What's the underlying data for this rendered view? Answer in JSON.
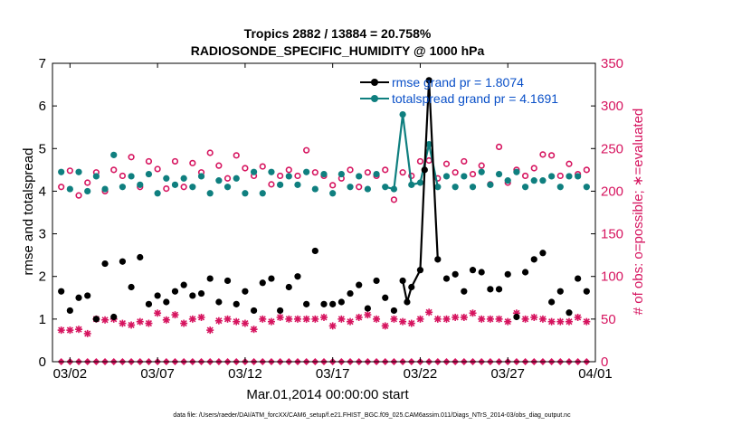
{
  "chart_data": {
    "type": "line",
    "title": "Tropics 2882 / 13884 = 20.758%",
    "subtitle": "RADIOSONDE_SPECIFIC_HUMIDITY @ 1000 hPa",
    "xlabel": "Mar.01,2014 00:00:00 start",
    "ylabel": "rmse and totalspread",
    "ylabel_right": "# of obs: o=possible; ∗=evaluated",
    "footer": "data file: /Users/raeder/DAI/ATM_forcXX/CAM6_setup/f.e21.FHIST_BGC.f09_025.CAM6assim.011/Diags_NTrS_2014-03/obs_diag_output.nc",
    "x_range": [
      1,
      32
    ],
    "ylim": [
      0,
      7
    ],
    "ylim_right": [
      0,
      350
    ],
    "x_ticks": [
      {
        "value": 2,
        "label": "03/02"
      },
      {
        "value": 7,
        "label": "03/07"
      },
      {
        "value": 12,
        "label": "03/12"
      },
      {
        "value": 17,
        "label": "03/17"
      },
      {
        "value": 22,
        "label": "03/22"
      },
      {
        "value": 27,
        "label": "03/27"
      },
      {
        "value": 32,
        "label": "04/01"
      }
    ],
    "y_ticks": [
      "0",
      "1",
      "2",
      "3",
      "4",
      "5",
      "6",
      "7"
    ],
    "y_ticks_right": [
      "0",
      "50",
      "100",
      "150",
      "200",
      "250",
      "300",
      "350"
    ],
    "legend": [
      {
        "label": "rmse grand pr = 1.8074",
        "color": "#000000"
      },
      {
        "label": "totalspread grand pr = 4.1691",
        "color": "#0f7f7f"
      }
    ],
    "colors": {
      "rmse": "#000000",
      "totalspread": "#0f7f7f",
      "obs": "#d6145f"
    },
    "series": [
      {
        "name": "rmse",
        "x": [
          1.5,
          2,
          2.5,
          3,
          3.5,
          4,
          4.5,
          5,
          5.5,
          6,
          6.5,
          7,
          7.5,
          8,
          8.5,
          9,
          9.5,
          10,
          10.5,
          11,
          11.5,
          12,
          12.5,
          13,
          13.5,
          14,
          14.5,
          15,
          15.5,
          16,
          16.5,
          17,
          17.5,
          18,
          18.5,
          19,
          19.5,
          20,
          20.5,
          21,
          21.25,
          21.5,
          22,
          22.25,
          22.5,
          23,
          23.5,
          24,
          24.5,
          25,
          25.5,
          26,
          26.5,
          27,
          27.5,
          28,
          28.5,
          29,
          29.5,
          30,
          30.5,
          31,
          31.5
        ],
        "values": [
          1.65,
          1.2,
          1.5,
          1.55,
          1.0,
          2.3,
          1.05,
          2.35,
          1.75,
          2.45,
          1.35,
          1.55,
          1.4,
          1.65,
          1.8,
          1.55,
          1.6,
          1.95,
          1.4,
          1.9,
          1.35,
          1.65,
          1.2,
          1.85,
          1.95,
          1.2,
          1.75,
          2.0,
          1.35,
          2.6,
          1.35,
          1.35,
          1.4,
          1.6,
          1.8,
          1.25,
          1.9,
          1.5,
          1.2,
          1.9,
          1.4,
          1.75,
          2.15,
          4.5,
          6.6,
          2.4,
          1.95,
          2.05,
          1.65,
          2.15,
          2.1,
          1.7,
          1.7,
          2.05,
          1.05,
          2.1,
          2.4,
          2.55,
          1.4,
          1.65,
          1.15,
          1.95,
          1.65
        ],
        "connected_x_range": [
          21.0,
          23.0
        ]
      },
      {
        "name": "totalspread",
        "x": [
          1.5,
          2,
          2.5,
          3,
          3.5,
          4,
          4.5,
          5,
          5.5,
          6,
          6.5,
          7,
          7.5,
          8,
          8.5,
          9,
          9.5,
          10,
          10.5,
          11,
          11.5,
          12,
          12.5,
          13,
          13.5,
          14,
          14.5,
          15,
          15.5,
          16,
          16.5,
          17,
          17.5,
          18,
          18.5,
          19,
          19.5,
          20,
          20.5,
          21,
          21.5,
          22,
          22.5,
          23,
          23.5,
          24,
          24.5,
          25,
          25.5,
          26,
          26.5,
          27,
          27.5,
          28,
          28.5,
          29,
          29.5,
          30,
          30.5,
          31,
          31.5
        ],
        "values": [
          4.45,
          4.05,
          4.45,
          4.0,
          4.35,
          4.05,
          4.85,
          4.1,
          4.35,
          4.15,
          4.4,
          3.95,
          4.3,
          4.15,
          4.3,
          4.1,
          4.35,
          3.95,
          4.25,
          4.1,
          4.3,
          3.95,
          4.45,
          3.95,
          4.45,
          4.15,
          4.35,
          4.15,
          4.45,
          4.05,
          4.4,
          3.95,
          4.4,
          4.1,
          4.35,
          4.05,
          4.4,
          4.1,
          4.05,
          5.8,
          4.15,
          4.2,
          5.1,
          4.1,
          4.35,
          4.1,
          4.35,
          4.1,
          4.45,
          4.15,
          4.4,
          4.25,
          4.45,
          4.1,
          4.25,
          4.25,
          4.35,
          4.1,
          4.35,
          4.35,
          4.1
        ],
        "connected_x_range": [
          20.0,
          23.0
        ]
      },
      {
        "name": "obs_possible",
        "x": [
          1.5,
          2,
          2.5,
          3,
          3.5,
          4,
          4.5,
          5,
          5.5,
          6,
          6.5,
          7,
          7.5,
          8,
          8.5,
          9,
          9.5,
          10,
          10.5,
          11,
          11.5,
          12,
          12.5,
          13,
          13.5,
          14,
          14.5,
          15,
          15.5,
          16,
          16.5,
          17,
          17.5,
          18,
          18.5,
          19,
          19.5,
          20,
          20.5,
          21,
          21.5,
          22,
          22.5,
          23,
          23.5,
          24,
          24.5,
          25,
          25.5,
          26,
          26.5,
          27,
          27.5,
          28,
          28.5,
          29,
          29.5,
          30,
          30.5,
          31,
          31.5
        ],
        "values": [
          205,
          224,
          195,
          210,
          222,
          200,
          225,
          218,
          240,
          205,
          235,
          226,
          203,
          235,
          205,
          233,
          222,
          245,
          230,
          215,
          242,
          227,
          218,
          229,
          208,
          218,
          225,
          218,
          248,
          222,
          218,
          207,
          215,
          225,
          205,
          222,
          218,
          225,
          190,
          222,
          218,
          235,
          236,
          215,
          232,
          222,
          235,
          220,
          230,
          208,
          252,
          210,
          225,
          218,
          227,
          243,
          242,
          218,
          232,
          220,
          225
        ],
        "axis": "right"
      },
      {
        "name": "obs_evaluated",
        "x": [
          1.5,
          2,
          2.5,
          3,
          3.5,
          4,
          4.5,
          5,
          5.5,
          6,
          6.5,
          7,
          7.5,
          8,
          8.5,
          9,
          9.5,
          10,
          10.5,
          11,
          11.5,
          12,
          12.5,
          13,
          13.5,
          14,
          14.5,
          15,
          15.5,
          16,
          16.5,
          17,
          17.5,
          18,
          18.5,
          19,
          19.5,
          20,
          20.5,
          21,
          21.5,
          22,
          22.5,
          23,
          23.5,
          24,
          24.5,
          25,
          25.5,
          26,
          26.5,
          27,
          27.5,
          28,
          28.5,
          29,
          29.5,
          30,
          30.5,
          31,
          31.5
        ],
        "values": [
          37,
          37,
          38,
          33,
          50,
          49,
          50,
          45,
          43,
          47,
          45,
          57,
          49,
          55,
          45,
          50,
          52,
          37,
          48,
          50,
          47,
          45,
          38,
          50,
          47,
          52,
          50,
          50,
          50,
          50,
          52,
          42,
          50,
          47,
          52,
          55,
          50,
          42,
          50,
          47,
          45,
          50,
          58,
          50,
          50,
          52,
          52,
          57,
          50,
          50,
          50,
          47,
          57,
          50,
          52,
          50,
          47,
          47,
          47,
          52,
          47
        ],
        "axis": "right"
      },
      {
        "name": "zero_markers",
        "x": [
          1.5,
          2,
          2.5,
          3,
          3.5,
          4,
          4.5,
          5,
          5.5,
          6,
          6.5,
          7,
          7.5,
          8,
          8.5,
          9,
          9.5,
          10,
          10.5,
          11,
          11.5,
          12,
          12.5,
          13,
          13.5,
          14,
          14.5,
          15,
          15.5,
          16,
          16.5,
          17,
          17.5,
          18,
          18.5,
          19,
          19.5,
          20,
          20.5,
          21,
          21.5,
          22,
          22.5,
          23,
          23.5,
          24,
          24.5,
          25,
          25.5,
          26,
          26.5,
          27,
          27.5,
          28,
          28.5,
          29,
          29.5,
          30,
          30.5,
          31,
          31.5
        ],
        "values": [
          0,
          0,
          0,
          0,
          0,
          0,
          0,
          0,
          0,
          0,
          0,
          0,
          0,
          0,
          0,
          0,
          0,
          0,
          0,
          0,
          0,
          0,
          0,
          0,
          0,
          0,
          0,
          0,
          0,
          0,
          0,
          0,
          0,
          0,
          0,
          0,
          0,
          0,
          0,
          0,
          0,
          0,
          0,
          0,
          0,
          0,
          0,
          0,
          0,
          0,
          0,
          0,
          0,
          0,
          0,
          0,
          0,
          0,
          0,
          0,
          0
        ],
        "axis": "right"
      }
    ]
  }
}
